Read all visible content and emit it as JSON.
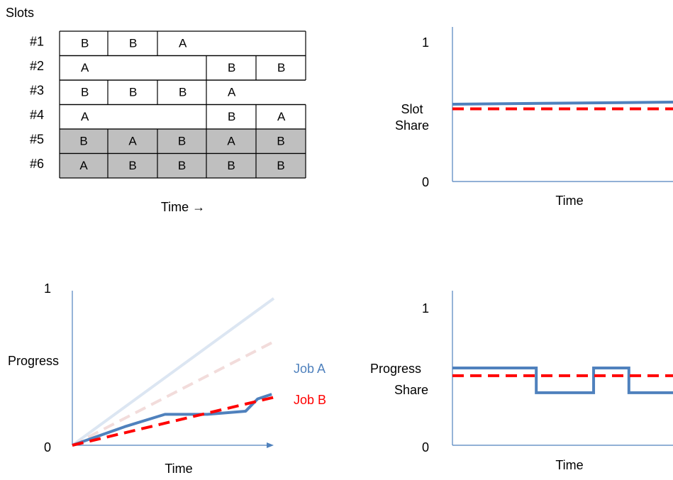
{
  "slot_table": {
    "heading": "Slots",
    "rows": [
      {
        "label": "#1",
        "cells": [
          "B",
          "B",
          "A",
          "",
          ""
        ],
        "shaded": false
      },
      {
        "label": "#2",
        "cells": [
          "A",
          "",
          "",
          "B",
          "B"
        ],
        "shaded": false
      },
      {
        "label": "#3",
        "cells": [
          "B",
          "B",
          "B",
          "A",
          ""
        ],
        "shaded": false
      },
      {
        "label": "#4",
        "cells": [
          "A",
          "",
          "",
          "B",
          "A"
        ],
        "shaded": false
      },
      {
        "label": "#5",
        "cells": [
          "B",
          "A",
          "B",
          "A",
          "B"
        ],
        "shaded": true
      },
      {
        "label": "#6",
        "cells": [
          "A",
          "B",
          "B",
          "B",
          "B"
        ],
        "shaded": true
      }
    ],
    "time_label": "Time →"
  },
  "colors": {
    "job_a": "#4f81bd",
    "job_b": "#ff0000",
    "job_a_faded": "#dce6f2",
    "job_b_faded": "#f2dcdb",
    "axis": "#4f81bd",
    "shade": "#bfbfbf"
  },
  "chart_data": [
    {
      "type": "line",
      "name": "slot-share",
      "ylabel": "Slot Share",
      "xlabel": "Time",
      "ytick_top": "1",
      "ytick_bottom": "0",
      "ylim": [
        0,
        1
      ],
      "xlim": [
        0,
        5
      ],
      "series": [
        {
          "x": [
            0,
            5
          ],
          "values": [
            0.5,
            0.5
          ]
        },
        {
          "x": [
            0,
            5
          ],
          "values": [
            0.47,
            0.47
          ]
        }
      ]
    },
    {
      "type": "line",
      "name": "progress",
      "ylabel": "Progress",
      "xlabel": "Time",
      "ytick_top": "1",
      "ytick_bottom": "0",
      "ylim": [
        0,
        1
      ],
      "xlim": [
        0,
        5
      ],
      "legend": [
        "Job A",
        "Job B"
      ],
      "series": [
        {
          "name": "Job A",
          "x": [
            0,
            1,
            2,
            2.2,
            3,
            4,
            5
          ],
          "values": [
            0,
            0.12,
            0.2,
            0.2,
            0.22,
            0.3,
            0.33
          ],
          "raw_x": [
            0,
            1.3,
            2.3,
            3.35,
            4.3,
            4.6,
            4.95
          ]
        },
        {
          "name": "Job B",
          "x": [
            0,
            5
          ],
          "values": [
            0,
            0.31
          ]
        },
        {
          "x": [
            0,
            5
          ],
          "values": [
            0,
            0.95
          ],
          "faded": true
        },
        {
          "x": [
            0,
            5
          ],
          "values": [
            0,
            0.67
          ],
          "faded": true
        }
      ]
    },
    {
      "type": "line",
      "name": "progress-share",
      "ylabel": "Progress Share",
      "xlabel": "Time",
      "ytick_top": "1",
      "ytick_bottom": "0",
      "ylim": [
        0,
        1
      ],
      "xlim": [
        0,
        5
      ],
      "series": [
        {
          "x": [
            0,
            1.9,
            1.9,
            3.2,
            3.2,
            4.0,
            4.0,
            5
          ],
          "values": [
            0.5,
            0.5,
            0.34,
            0.34,
            0.5,
            0.5,
            0.34,
            0.34
          ]
        },
        {
          "x": [
            0,
            5
          ],
          "values": [
            0.45,
            0.45
          ]
        }
      ]
    }
  ]
}
